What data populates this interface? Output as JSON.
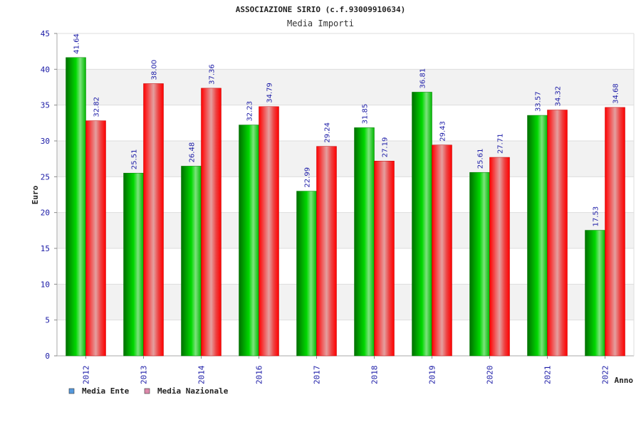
{
  "chart_data": {
    "type": "bar",
    "title": "ASSOCIAZIONE SIRIO (c.f.93009910634)",
    "subtitle": "Media Importi",
    "xlabel": "Anno",
    "ylabel": "Euro",
    "ylim": [
      0,
      45
    ],
    "ytick_step": 5,
    "grid": true,
    "legend_position": "bottom-left",
    "categories": [
      "2012",
      "2013",
      "2014",
      "2016",
      "2017",
      "2018",
      "2019",
      "2020",
      "2021",
      "2022"
    ],
    "series": [
      {
        "name": "Media Ente",
        "color": "#00b000",
        "legend_color": "#5599dd",
        "values": [
          41.64,
          25.51,
          26.48,
          32.23,
          22.99,
          31.85,
          36.81,
          25.61,
          33.57,
          17.53
        ],
        "labels": [
          "41.64",
          "25.51",
          "26.48",
          "32.23",
          "22.99",
          "31.85",
          "36.81",
          "25.61",
          "33.57",
          "17.53"
        ]
      },
      {
        "name": "Media Nazionale",
        "color": "#ee1111",
        "legend_color": "#dd88aa",
        "values": [
          32.82,
          38.0,
          37.36,
          34.79,
          29.24,
          27.19,
          29.43,
          27.71,
          34.32,
          34.68
        ],
        "labels": [
          "32.82",
          "38.00",
          "37.36",
          "34.79",
          "29.24",
          "27.19",
          "29.43",
          "27.71",
          "34.32",
          "34.68"
        ]
      }
    ]
  }
}
